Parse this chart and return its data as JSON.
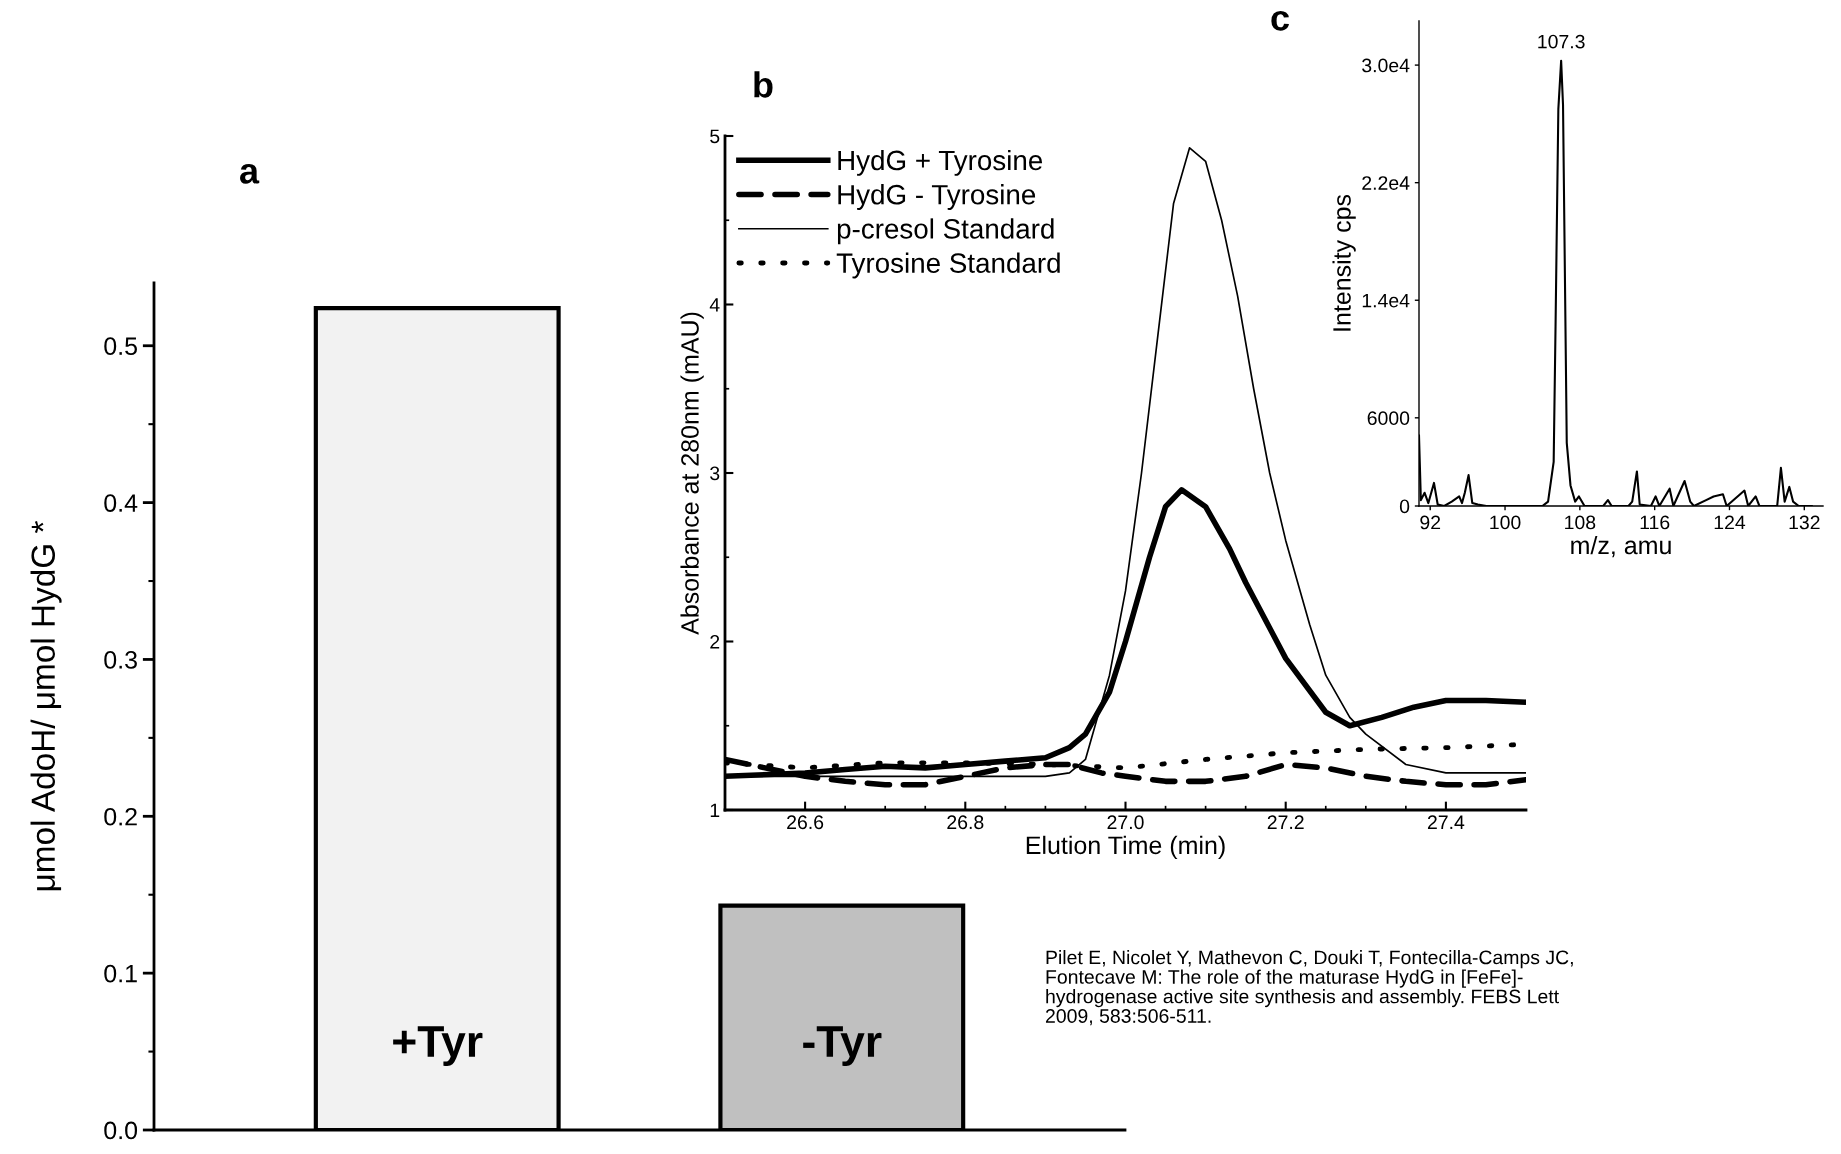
{
  "chart_data": [
    {
      "type": "bar",
      "title": "a",
      "ylabel": "μmol AdoH/ μmol HydG *",
      "categories": [
        "+Tyr",
        "-Tyr"
      ],
      "values": [
        0.524,
        0.143
      ],
      "colors": [
        "#f2f2f2",
        "#c0c0c0"
      ],
      "ylim": [
        0,
        0.54
      ],
      "yticks": [
        {
          "value": 0,
          "label": "0.0"
        },
        0.1,
        0.2,
        0.3,
        0.4,
        0.5
      ],
      "grid": false,
      "annotations": [
        "Pilet E, Nicolet Y, Mathevon C, Douki T, Fontecilla-Camps JC,\nFontecave M: The role of the maturase HydG in [FeFe]-\nhydrogenase active site synthesis and assembly. FEBS Lett\n2009, 583:506-511."
      ]
    },
    {
      "type": "line",
      "title": "b",
      "xlabel": "Elution Time (min)",
      "ylabel": "Absorbance at 280nm (mAU)",
      "xlim": [
        26.5,
        27.5
      ],
      "ylim": [
        1,
        5
      ],
      "xticks": [
        26.6,
        26.8,
        {
          "value": 27.0,
          "label": "27.0"
        },
        27.2,
        27.4
      ],
      "yticks": [
        1,
        2,
        3,
        4,
        5
      ],
      "grid": false,
      "legend": "top left",
      "marker": "none",
      "series": [
        {
          "name": "HydG + Tyrosine",
          "color": "#000000",
          "line_style": "solid",
          "x": [
            26.5,
            26.6,
            26.65,
            26.7,
            26.75,
            26.8,
            26.85,
            26.9,
            26.93,
            26.95,
            26.98,
            27.0,
            27.03,
            27.05,
            27.07,
            27.1,
            27.13,
            27.15,
            27.2,
            27.25,
            27.28,
            27.32,
            27.36,
            27.4,
            27.45,
            27.5
          ],
          "values": [
            1.2,
            1.22,
            1.24,
            1.26,
            1.25,
            1.27,
            1.29,
            1.31,
            1.37,
            1.45,
            1.7,
            2.0,
            2.5,
            2.8,
            2.9,
            2.8,
            2.55,
            2.35,
            1.9,
            1.58,
            1.5,
            1.55,
            1.61,
            1.65,
            1.65,
            1.64
          ]
        },
        {
          "name": "HydG - Tyrosine",
          "color": "#000000",
          "line_style": "dashed",
          "x": [
            26.5,
            26.55,
            26.6,
            26.65,
            26.7,
            26.75,
            26.8,
            26.85,
            26.9,
            26.93,
            26.97,
            27.0,
            27.05,
            27.1,
            27.15,
            27.2,
            27.25,
            27.3,
            27.35,
            27.4,
            27.45,
            27.5
          ],
          "values": [
            1.3,
            1.25,
            1.2,
            1.17,
            1.15,
            1.15,
            1.2,
            1.25,
            1.27,
            1.27,
            1.22,
            1.2,
            1.17,
            1.17,
            1.2,
            1.27,
            1.25,
            1.2,
            1.17,
            1.15,
            1.15,
            1.18
          ]
        },
        {
          "name": "p-cresol Standard",
          "color": "#000000",
          "line_style": "solid",
          "x": [
            26.5,
            26.7,
            26.9,
            26.93,
            26.95,
            26.98,
            27.0,
            27.02,
            27.04,
            27.06,
            27.08,
            27.1,
            27.12,
            27.14,
            27.16,
            27.18,
            27.2,
            27.23,
            27.25,
            27.28,
            27.3,
            27.35,
            27.4,
            27.5
          ],
          "values": [
            1.2,
            1.2,
            1.2,
            1.22,
            1.3,
            1.8,
            2.3,
            3.0,
            3.8,
            4.6,
            4.93,
            4.85,
            4.5,
            4.05,
            3.5,
            3.0,
            2.6,
            2.1,
            1.8,
            1.55,
            1.45,
            1.27,
            1.22,
            1.22
          ]
        },
        {
          "name": "Tyrosine Standard",
          "color": "#000000",
          "line_style": "dotted",
          "x": [
            26.5,
            26.6,
            26.7,
            26.8,
            26.9,
            27.0,
            27.1,
            27.2,
            27.3,
            27.4,
            27.5
          ],
          "values": [
            1.28,
            1.25,
            1.28,
            1.28,
            1.27,
            1.25,
            1.3,
            1.34,
            1.36,
            1.37,
            1.39
          ]
        }
      ]
    },
    {
      "type": "line",
      "title": "c",
      "xlabel": "m/z, amu",
      "ylabel": "Intensity cps",
      "xlim": [
        90.8,
        134
      ],
      "ylim": [
        0,
        33000
      ],
      "xticks": [
        92,
        100,
        108,
        116,
        124,
        132
      ],
      "yticks": [
        0,
        6000,
        {
          "value": 14000,
          "label": "1.4e4"
        },
        {
          "value": 22000,
          "label": "2.2e4"
        },
        {
          "value": 30000,
          "label": "3.0e4"
        }
      ],
      "grid": false,
      "marker": "none",
      "annotations": [
        {
          "text": "107.3",
          "x": 106.0,
          "y": 30300
        }
      ],
      "series": [
        {
          "color": "#000000",
          "line_style": "solid",
          "x": [
            90.8,
            91.0,
            91.4,
            91.8,
            92.4,
            92.8,
            93.5,
            94.3,
            95.1,
            95.4,
            95.7,
            96.1,
            96.5,
            97.1,
            98,
            104.0,
            104.6,
            105.2,
            105.4,
            105.7,
            106.0,
            106.2,
            106.4,
            106.6,
            107.0,
            107.5,
            107.9,
            108.5,
            110.5,
            111.0,
            111.4,
            113.2,
            113.6,
            114.1,
            114.4,
            115.6,
            116.1,
            116.5,
            117.6,
            118.0,
            119.2,
            119.8,
            120.2,
            121.5,
            122.3,
            123.3,
            123.7,
            125.6,
            126.0,
            126.8,
            127.2,
            129.1,
            129.5,
            129.9,
            130.4,
            130.8,
            131.4,
            132.8
          ],
          "values": [
            4800,
            400,
            900,
            200,
            1570,
            100,
            0,
            300,
            650,
            200,
            900,
            2100,
            200,
            100,
            0,
            0,
            300,
            3000,
            12200,
            27000,
            30300,
            27300,
            15800,
            4300,
            1400,
            300,
            650,
            0,
            0,
            400,
            0,
            0,
            300,
            2350,
            100,
            0,
            650,
            0,
            1180,
            0,
            1700,
            300,
            0,
            400,
            650,
            800,
            0,
            1050,
            0,
            650,
            0,
            0,
            2600,
            300,
            1300,
            300,
            0,
            0
          ]
        }
      ]
    }
  ]
}
